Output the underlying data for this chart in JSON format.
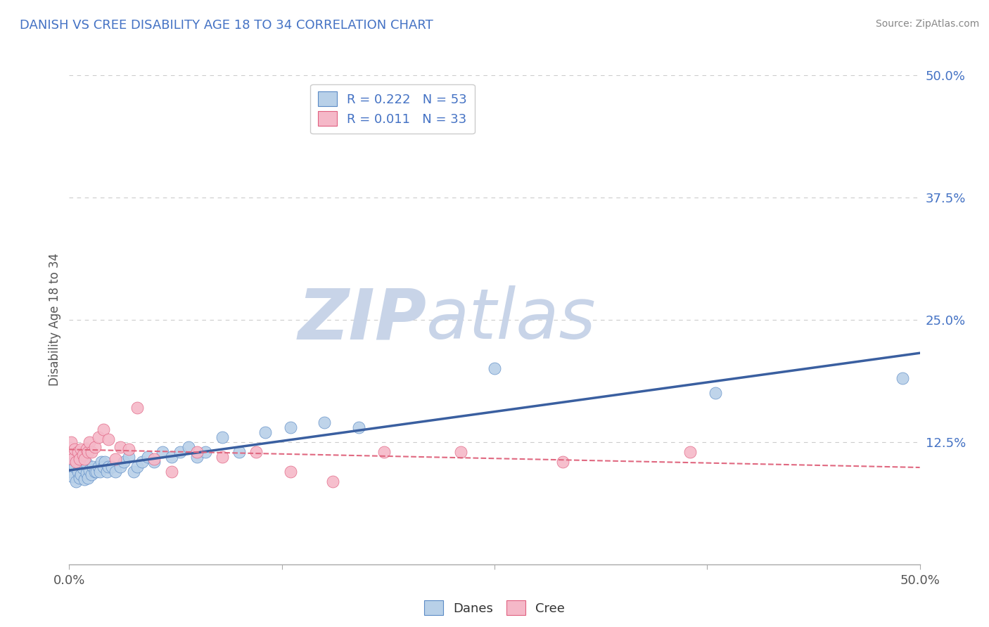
{
  "title": "DANISH VS CREE DISABILITY AGE 18 TO 34 CORRELATION CHART",
  "source": "Source: ZipAtlas.com",
  "ylabel_label": "Disability Age 18 to 34",
  "xlim": [
    0.0,
    0.5
  ],
  "ylim": [
    0.0,
    0.5
  ],
  "xtick_positions": [
    0.0,
    0.125,
    0.25,
    0.375,
    0.5
  ],
  "xtick_labels": [
    "0.0%",
    "",
    "",
    "",
    "50.0%"
  ],
  "ytick_positions_right": [
    0.5,
    0.375,
    0.25,
    0.125,
    0.0
  ],
  "ytick_labels_right": [
    "50.0%",
    "37.5%",
    "25.0%",
    "12.5%",
    ""
  ],
  "legend_r_danish": "0.222",
  "legend_n_danish": "53",
  "legend_r_cree": "0.011",
  "legend_n_cree": "33",
  "danish_color": "#b8d0e8",
  "cree_color": "#f5b8c8",
  "danish_edge_color": "#5b8ac5",
  "cree_edge_color": "#e06080",
  "danish_line_color": "#3a5fa0",
  "cree_line_color": "#e06880",
  "background_color": "#ffffff",
  "grid_color": "#cccccc",
  "title_color": "#4472c4",
  "danes_scatter_x": [
    0.001,
    0.001,
    0.002,
    0.003,
    0.003,
    0.004,
    0.005,
    0.005,
    0.006,
    0.006,
    0.007,
    0.008,
    0.009,
    0.01,
    0.01,
    0.011,
    0.012,
    0.013,
    0.014,
    0.015,
    0.016,
    0.017,
    0.018,
    0.019,
    0.02,
    0.021,
    0.022,
    0.023,
    0.025,
    0.027,
    0.03,
    0.032,
    0.035,
    0.038,
    0.04,
    0.043,
    0.046,
    0.05,
    0.055,
    0.06,
    0.065,
    0.07,
    0.075,
    0.08,
    0.09,
    0.1,
    0.115,
    0.13,
    0.15,
    0.17,
    0.25,
    0.38,
    0.49
  ],
  "danes_scatter_y": [
    0.095,
    0.105,
    0.09,
    0.1,
    0.11,
    0.085,
    0.095,
    0.105,
    0.088,
    0.108,
    0.092,
    0.098,
    0.087,
    0.093,
    0.103,
    0.088,
    0.096,
    0.092,
    0.1,
    0.095,
    0.095,
    0.1,
    0.095,
    0.105,
    0.1,
    0.105,
    0.095,
    0.1,
    0.1,
    0.095,
    0.1,
    0.105,
    0.11,
    0.095,
    0.1,
    0.105,
    0.11,
    0.105,
    0.115,
    0.11,
    0.115,
    0.12,
    0.11,
    0.115,
    0.13,
    0.115,
    0.135,
    0.14,
    0.145,
    0.14,
    0.2,
    0.175,
    0.19
  ],
  "cree_scatter_x": [
    0.001,
    0.001,
    0.002,
    0.003,
    0.004,
    0.005,
    0.006,
    0.007,
    0.008,
    0.009,
    0.01,
    0.011,
    0.012,
    0.013,
    0.015,
    0.017,
    0.02,
    0.023,
    0.027,
    0.03,
    0.035,
    0.04,
    0.05,
    0.06,
    0.075,
    0.09,
    0.11,
    0.13,
    0.155,
    0.185,
    0.23,
    0.29,
    0.365
  ],
  "cree_scatter_y": [
    0.115,
    0.125,
    0.108,
    0.118,
    0.105,
    0.115,
    0.108,
    0.118,
    0.112,
    0.108,
    0.118,
    0.115,
    0.125,
    0.115,
    0.12,
    0.13,
    0.138,
    0.128,
    0.108,
    0.12,
    0.118,
    0.16,
    0.108,
    0.095,
    0.115,
    0.11,
    0.115,
    0.095,
    0.085,
    0.115,
    0.115,
    0.105,
    0.115
  ],
  "watermark_zip_color": "#c8d4e8",
  "watermark_atlas_color": "#c8d4e8",
  "watermark_fontsize": 72
}
